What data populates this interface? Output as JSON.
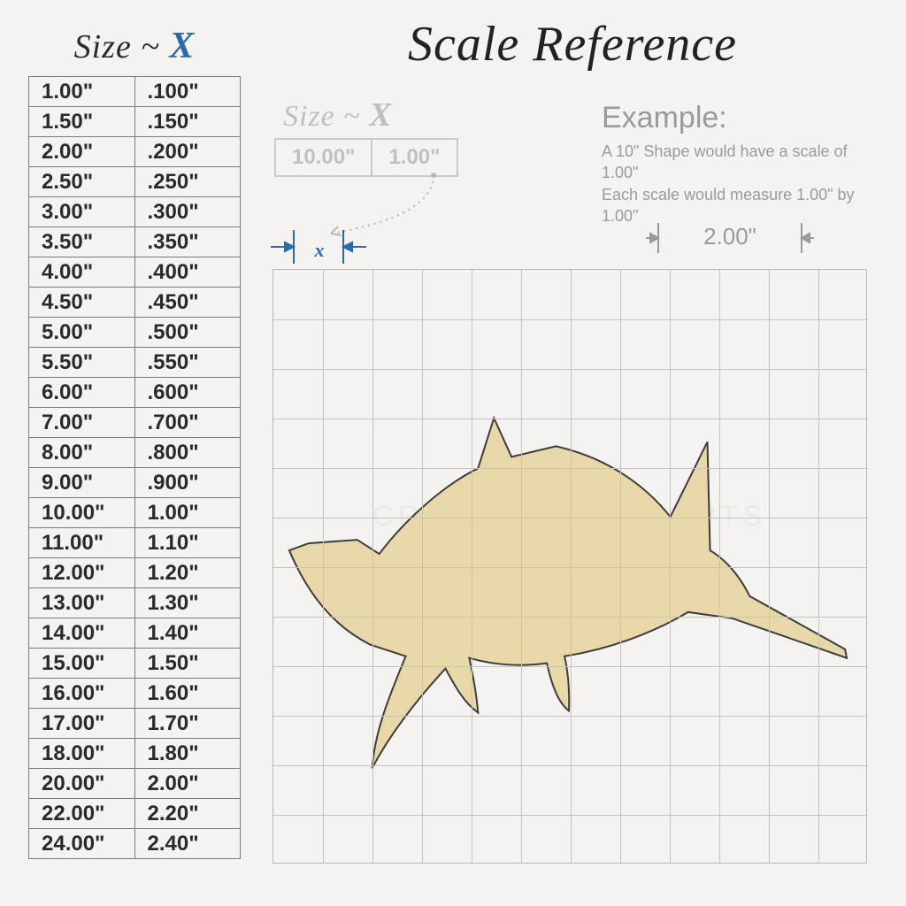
{
  "title": "Scale Reference",
  "size_header": {
    "label": "Size",
    "sep": "~",
    "x": "X"
  },
  "table": {
    "columns": [
      "Size",
      "X"
    ],
    "rows": [
      [
        "1.00\"",
        ".100\""
      ],
      [
        "1.50\"",
        ".150\""
      ],
      [
        "2.00\"",
        ".200\""
      ],
      [
        "2.50\"",
        ".250\""
      ],
      [
        "3.00\"",
        ".300\""
      ],
      [
        "3.50\"",
        ".350\""
      ],
      [
        "4.00\"",
        ".400\""
      ],
      [
        "4.50\"",
        ".450\""
      ],
      [
        "5.00\"",
        ".500\""
      ],
      [
        "5.50\"",
        ".550\""
      ],
      [
        "6.00\"",
        ".600\""
      ],
      [
        "7.00\"",
        ".700\""
      ],
      [
        "8.00\"",
        ".800\""
      ],
      [
        "9.00\"",
        ".900\""
      ],
      [
        "10.00\"",
        "1.00\""
      ],
      [
        "11.00\"",
        "1.10\""
      ],
      [
        "12.00\"",
        "1.20\""
      ],
      [
        "13.00\"",
        "1.30\""
      ],
      [
        "14.00\"",
        "1.40\""
      ],
      [
        "15.00\"",
        "1.50\""
      ],
      [
        "16.00\"",
        "1.60\""
      ],
      [
        "17.00\"",
        "1.70\""
      ],
      [
        "18.00\"",
        "1.80\""
      ],
      [
        "20.00\"",
        "2.00\""
      ],
      [
        "22.00\"",
        "2.20\""
      ],
      [
        "24.00\"",
        "2.40\""
      ]
    ]
  },
  "mini": {
    "header": {
      "label": "Size",
      "sep": "~",
      "x": "X"
    },
    "cells": [
      "10.00\"",
      "1.00\""
    ]
  },
  "example": {
    "title": "Example:",
    "line1": "A 10\" Shape would have a scale of 1.00\"",
    "line2": "Each scale would measure 1.00\" by 1.00\""
  },
  "xdim_label": "x",
  "scale_marker": "2.00\"",
  "watermark": "CRAFTCUTCONCEPTS",
  "grid": {
    "cells": 12,
    "line_color": "#c4c4c4",
    "border_color": "#b8b8b8",
    "background": "#f4f3ef"
  },
  "shape": {
    "fill": "#e7d7a9",
    "stroke": "#3c3c3c",
    "stroke_width": 2
  },
  "colors": {
    "title": "#222222",
    "accent_blue": "#2d6aa8",
    "muted_gray": "#9a9a9a",
    "light_gray": "#bfbfbf",
    "table_border": "#7a7a7a"
  }
}
